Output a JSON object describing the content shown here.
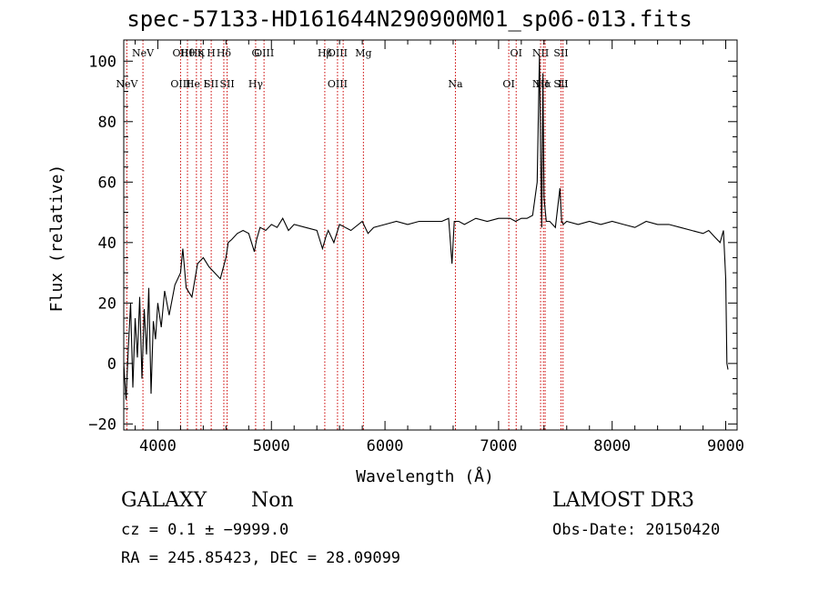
{
  "chart_data": {
    "type": "line",
    "title": "spec-57133-HD161644N290900M01_sp06-013.fits",
    "xlabel": "Wavelength (Å)",
    "ylabel": "Flux (relative)",
    "xlim": [
      3700,
      9100
    ],
    "ylim": [
      -22,
      107
    ],
    "x_ticks": [
      "4000",
      "5000",
      "6000",
      "7000",
      "8000",
      "9000"
    ],
    "y_ticks": [
      "−20",
      "0",
      "20",
      "40",
      "60",
      "80",
      "100"
    ],
    "line_color": "#000000",
    "marker_color": "#cc0000",
    "grid": false,
    "series": [
      {
        "x": [
          3700,
          3720,
          3740,
          3760,
          3780,
          3800,
          3820,
          3840,
          3860,
          3880,
          3900,
          3920,
          3940,
          3960,
          3980,
          4000,
          4030,
          4060,
          4100,
          4150,
          4200,
          4220,
          4250,
          4300,
          4350,
          4400,
          4450,
          4500,
          4550,
          4600,
          4620,
          4650,
          4700,
          4750,
          4800,
          4850,
          4870,
          4900,
          4950,
          5000,
          5050,
          5100,
          5150,
          5200,
          5300,
          5400,
          5450,
          5480,
          5500,
          5550,
          5600,
          5650,
          5700,
          5800,
          5850,
          5900,
          6000,
          6100,
          6200,
          6300,
          6400,
          6500,
          6560,
          6590,
          6610,
          6650,
          6700,
          6800,
          6900,
          7000,
          7100,
          7150,
          7200,
          7250,
          7300,
          7340,
          7360,
          7370,
          7380,
          7390,
          7400,
          7420,
          7450,
          7500,
          7540,
          7555,
          7570,
          7600,
          7700,
          7800,
          7900,
          8000,
          8100,
          8200,
          8300,
          8400,
          8500,
          8600,
          8700,
          8800,
          8850,
          8900,
          8950,
          8980,
          9000,
          9010,
          9020
        ],
        "y": [
          0,
          -12,
          5,
          20,
          -8,
          15,
          2,
          22,
          -5,
          18,
          3,
          25,
          -10,
          14,
          8,
          20,
          12,
          24,
          16,
          26,
          30,
          38,
          25,
          22,
          33,
          35,
          32,
          30,
          28,
          35,
          40,
          41,
          43,
          44,
          43,
          37,
          41,
          45,
          44,
          46,
          45,
          48,
          44,
          46,
          45,
          44,
          38,
          42,
          44,
          40,
          46,
          45,
          44,
          47,
          43,
          45,
          46,
          47,
          46,
          47,
          47,
          47,
          48,
          33,
          47,
          47,
          46,
          48,
          47,
          48,
          48,
          47,
          48,
          48,
          49,
          60,
          102,
          70,
          45,
          96,
          55,
          47,
          47,
          45,
          58,
          47,
          46,
          47,
          46,
          47,
          46,
          47,
          46,
          45,
          47,
          46,
          46,
          45,
          44,
          43,
          44,
          42,
          40,
          44,
          28,
          0,
          -2
        ]
      }
    ],
    "line_markers": [
      {
        "x": 3727,
        "upper": "",
        "lower": "NeV"
      },
      {
        "x": 3869,
        "upper": "NeV",
        "lower": ""
      },
      {
        "x": 4200,
        "upper": "OII",
        "lower": "OIII"
      },
      {
        "x": 4261,
        "upper": "Hθ",
        "lower": ""
      },
      {
        "x": 4340,
        "upper": "Hη",
        "lower": "He I"
      },
      {
        "x": 4380,
        "upper": "K",
        "lower": ""
      },
      {
        "x": 4470,
        "upper": "H",
        "lower": "SII"
      },
      {
        "x": 4581,
        "upper": "Hδ",
        "lower": ""
      },
      {
        "x": 4610,
        "upper": "",
        "lower": "SII"
      },
      {
        "x": 4861,
        "upper": "G",
        "lower": "Hγ"
      },
      {
        "x": 4935,
        "upper": "OIII",
        "lower": ""
      },
      {
        "x": 5470,
        "upper": "Hβ",
        "lower": ""
      },
      {
        "x": 5582,
        "upper": "OIII",
        "lower": "OIII"
      },
      {
        "x": 5632,
        "upper": "",
        "lower": ""
      },
      {
        "x": 5810,
        "upper": "Mg",
        "lower": ""
      },
      {
        "x": 6620,
        "upper": "",
        "lower": "Na"
      },
      {
        "x": 7090,
        "upper": "",
        "lower": "OI"
      },
      {
        "x": 7155,
        "upper": "OI",
        "lower": ""
      },
      {
        "x": 7370,
        "upper": "NII",
        "lower": "NII"
      },
      {
        "x": 7395,
        "upper": "",
        "lower": "Hα"
      },
      {
        "x": 7410,
        "upper": "",
        "lower": ""
      },
      {
        "x": 7550,
        "upper": "SII",
        "lower": "SII"
      },
      {
        "x": 7567,
        "upper": "",
        "lower": "Li"
      }
    ]
  },
  "info": {
    "class": "GALAXY",
    "subclass": "Non",
    "cz": "cz = 0.1 ± −9999.0",
    "radec": "RA = 245.85423, DEC =  28.09099",
    "survey": "LAMOST DR3",
    "obs_date": "Obs-Date: 20150420"
  }
}
